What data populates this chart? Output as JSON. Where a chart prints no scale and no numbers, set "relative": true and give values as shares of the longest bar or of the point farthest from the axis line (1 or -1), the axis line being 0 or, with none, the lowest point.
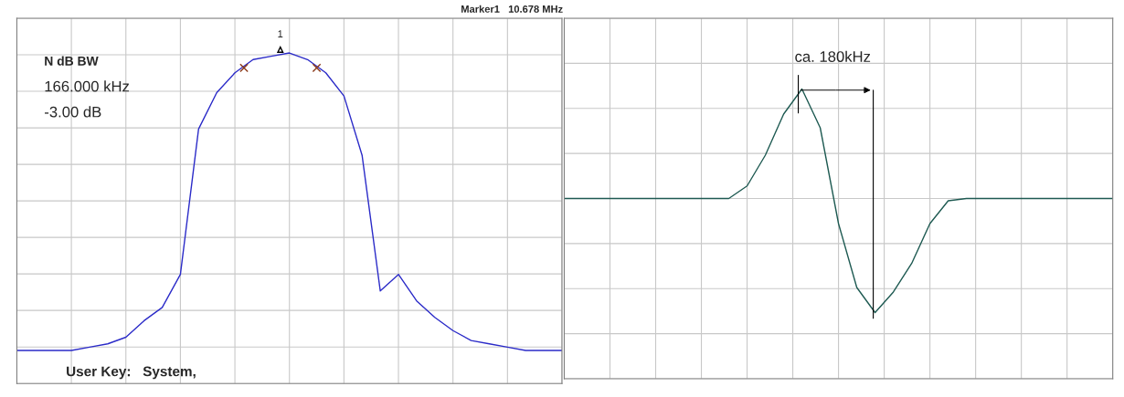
{
  "chart_data": [
    {
      "type": "line",
      "title": "Marker1   10.678 MHz",
      "relative": true,
      "grid": true,
      "categories": [
        null,
        null,
        null,
        null,
        null,
        null,
        null,
        null,
        null,
        null,
        null,
        null,
        null,
        null,
        null,
        null,
        null,
        null,
        null,
        null,
        null,
        null,
        null,
        null,
        null,
        null,
        null,
        null,
        null,
        null,
        null
      ],
      "series": [
        {
          "color": "#2b2bc8",
          "values": [
            0.1,
            0.1,
            0.1,
            0.1,
            0.11,
            0.12,
            0.14,
            0.19,
            0.23,
            0.33,
            0.77,
            0.88,
            0.94,
            0.98,
            0.99,
            1,
            0.98,
            0.94,
            0.87,
            0.69,
            0.28,
            0.33,
            0.25,
            0.2,
            0.16,
            0.13,
            0.12,
            0.11,
            0.1,
            0.1,
            0.1
          ]
        }
      ],
      "annotations": [
        "N dB BW",
        "166.000 kHz",
        "-3.00 dB",
        "User Key:   System,",
        "1"
      ]
    },
    {
      "type": "line",
      "relative": true,
      "grid": true,
      "categories": [
        null,
        null,
        null,
        null,
        null,
        null,
        null,
        null,
        null,
        null,
        null,
        null,
        null,
        null,
        null,
        null,
        null,
        null,
        null,
        null,
        null,
        null,
        null,
        null,
        null,
        null,
        null,
        null,
        null,
        null,
        null
      ],
      "series": [
        {
          "color": "#1e5a52",
          "values": [
            0,
            0,
            0,
            0,
            0,
            0,
            0,
            0,
            0,
            0,
            0.11,
            0.38,
            0.74,
            0.96,
            0.62,
            -0.22,
            -0.78,
            -1,
            -0.82,
            -0.57,
            -0.22,
            -0.02,
            0,
            0,
            0,
            0,
            0,
            0,
            0,
            0,
            0
          ]
        }
      ],
      "annotations": [
        "ca. 180kHz"
      ]
    }
  ]
}
